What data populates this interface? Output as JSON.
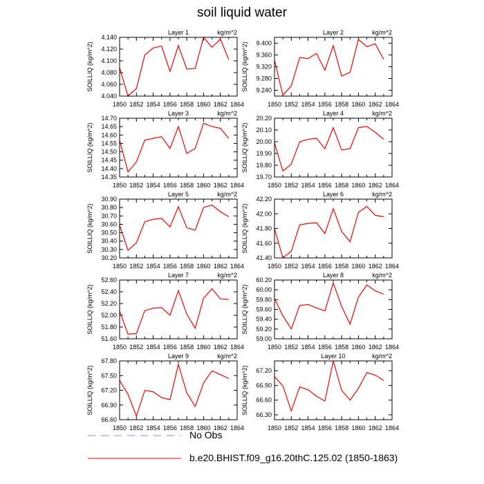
{
  "title": "soil liquid water",
  "legend": {
    "entries": [
      {
        "label": "No Obs",
        "color": "#8080ff",
        "style": "dashed"
      },
      {
        "label": "b.e20.BHIST.f09_g16.20thC.125.02 (1850-1863)",
        "color": "#ff0000",
        "style": "solid"
      }
    ]
  },
  "chart_data": [
    {
      "type": "line",
      "title": "Layer 1",
      "units": "kg/m^2",
      "ylabel": "SOILLIQ  (kg/m^2)",
      "xlim": [
        1850,
        1864
      ],
      "xticks": [
        "1850",
        "1852",
        "1854",
        "1856",
        "1858",
        "1860",
        "1862",
        "1864"
      ],
      "ylim": [
        4.04,
        4.14
      ],
      "yticks": [
        "4.040",
        "4.060",
        "4.080",
        "4.100",
        "4.120",
        "4.140"
      ],
      "x": [
        1850,
        1851,
        1852,
        1853,
        1854,
        1855,
        1856,
        1857,
        1858,
        1859,
        1860,
        1861,
        1862,
        1863
      ],
      "series": [
        {
          "name": "b.e20.BHIST.f09_g16.20thC.125.02 (1850-1863)",
          "values": [
            4.088,
            4.04,
            4.053,
            4.11,
            4.122,
            4.125,
            4.082,
            4.126,
            4.086,
            4.087,
            4.14,
            4.123,
            4.137,
            4.102
          ]
        }
      ]
    },
    {
      "type": "line",
      "title": "Layer 2",
      "units": "kg/m^2",
      "ylabel": "SOILLIQ  (kg/m^2)",
      "xlim": [
        1850,
        1864
      ],
      "xticks": [
        "1850",
        "1852",
        "1854",
        "1856",
        "1858",
        "1860",
        "1862",
        "1864"
      ],
      "ylim": [
        9.22,
        9.42
      ],
      "yticks": [
        "9.240",
        "9.280",
        "9.320",
        "9.360",
        "9.400"
      ],
      "x": [
        1850,
        1851,
        1852,
        1853,
        1854,
        1855,
        1856,
        1857,
        1858,
        1859,
        1860,
        1861,
        1862,
        1863
      ],
      "series": [
        {
          "name": "b.e20.BHIST.f09_g16.20thC.125.02 (1850-1863)",
          "values": [
            9.342,
            9.223,
            9.255,
            9.351,
            9.348,
            9.365,
            9.308,
            9.392,
            9.288,
            9.301,
            9.413,
            9.388,
            9.398,
            9.345
          ]
        }
      ]
    },
    {
      "type": "line",
      "title": "Layer 3",
      "units": "kg/m^2",
      "ylabel": "SOILLIQ  (kg/m^2)",
      "xlim": [
        1850,
        1864
      ],
      "xticks": [
        "1850",
        "1852",
        "1854",
        "1856",
        "1858",
        "1860",
        "1862",
        "1864"
      ],
      "ylim": [
        14.35,
        14.7
      ],
      "yticks": [
        "14.35",
        "14.40",
        "14.45",
        "14.50",
        "14.55",
        "14.60",
        "14.65",
        "14.70"
      ],
      "x": [
        1850,
        1851,
        1852,
        1853,
        1854,
        1855,
        1856,
        1857,
        1858,
        1859,
        1860,
        1861,
        1862,
        1863
      ],
      "series": [
        {
          "name": "b.e20.BHIST.f09_g16.20thC.125.02 (1850-1863)",
          "values": [
            14.57,
            14.38,
            14.44,
            14.57,
            14.58,
            14.59,
            14.52,
            14.65,
            14.49,
            14.52,
            14.67,
            14.65,
            14.64,
            14.58
          ]
        }
      ]
    },
    {
      "type": "line",
      "title": "Layer 4",
      "units": "kg/m^2",
      "ylabel": "SOILLIQ  (kg/m^2)",
      "xlim": [
        1850,
        1864
      ],
      "xticks": [
        "1850",
        "1852",
        "1854",
        "1856",
        "1858",
        "1860",
        "1862",
        "1864"
      ],
      "ylim": [
        19.7,
        20.2
      ],
      "yticks": [
        "19.70",
        "19.80",
        "19.90",
        "20.00",
        "20.10",
        "20.20"
      ],
      "x": [
        1850,
        1851,
        1852,
        1853,
        1854,
        1855,
        1856,
        1857,
        1858,
        1859,
        1860,
        1861,
        1862,
        1863
      ],
      "series": [
        {
          "name": "b.e20.BHIST.f09_g16.20thC.125.02 (1850-1863)",
          "values": [
            19.99,
            19.75,
            19.81,
            20.0,
            20.02,
            20.03,
            19.94,
            20.12,
            19.93,
            19.94,
            20.12,
            20.13,
            20.08,
            20.02
          ]
        }
      ]
    },
    {
      "type": "line",
      "title": "Layer 5",
      "units": "kg/m^2",
      "ylabel": "SOILLIQ  (kg/m^2)",
      "xlim": [
        1850,
        1864
      ],
      "xticks": [
        "1850",
        "1852",
        "1854",
        "1856",
        "1858",
        "1860",
        "1862",
        "1864"
      ],
      "ylim": [
        30.2,
        30.9
      ],
      "yticks": [
        "30.20",
        "30.30",
        "30.40",
        "30.50",
        "30.60",
        "30.70",
        "30.80",
        "30.90"
      ],
      "x": [
        1850,
        1851,
        1852,
        1853,
        1854,
        1855,
        1856,
        1857,
        1858,
        1859,
        1860,
        1861,
        1862,
        1863
      ],
      "series": [
        {
          "name": "b.e20.BHIST.f09_g16.20thC.125.02 (1850-1863)",
          "values": [
            30.59,
            30.29,
            30.38,
            30.63,
            30.66,
            30.67,
            30.57,
            30.81,
            30.56,
            30.53,
            30.8,
            30.83,
            30.75,
            30.69
          ]
        }
      ]
    },
    {
      "type": "line",
      "title": "Layer 6",
      "units": "kg/m^2",
      "ylabel": "SOILLIQ  (kg/m^2)",
      "xlim": [
        1850,
        1864
      ],
      "xticks": [
        "1850",
        "1852",
        "1854",
        "1856",
        "1858",
        "1860",
        "1862",
        "1864"
      ],
      "ylim": [
        41.4,
        42.2
      ],
      "yticks": [
        "41.40",
        "41.60",
        "41.80",
        "42.00",
        "42.20"
      ],
      "x": [
        1850,
        1851,
        1852,
        1853,
        1854,
        1855,
        1856,
        1857,
        1858,
        1859,
        1860,
        1861,
        1862,
        1863
      ],
      "series": [
        {
          "name": "b.e20.BHIST.f09_g16.20thC.125.02 (1850-1863)",
          "values": [
            41.8,
            41.4,
            41.49,
            41.85,
            41.87,
            41.88,
            41.73,
            42.07,
            41.76,
            41.62,
            42.02,
            42.1,
            41.98,
            41.96
          ]
        }
      ]
    },
    {
      "type": "line",
      "title": "Layer 7",
      "units": "kg/m^2",
      "ylabel": "SOILLIQ  (kg/m^2)",
      "xlim": [
        1850,
        1864
      ],
      "xticks": [
        "1850",
        "1852",
        "1854",
        "1856",
        "1858",
        "1860",
        "1862",
        "1864"
      ],
      "ylim": [
        51.6,
        52.6
      ],
      "yticks": [
        "51.60",
        "51.80",
        "52.00",
        "52.20",
        "52.40",
        "52.60"
      ],
      "x": [
        1850,
        1851,
        1852,
        1853,
        1854,
        1855,
        1856,
        1857,
        1858,
        1859,
        1860,
        1861,
        1862,
        1863
      ],
      "series": [
        {
          "name": "b.e20.BHIST.f09_g16.20thC.125.02 (1850-1863)",
          "values": [
            52.07,
            51.68,
            51.69,
            52.08,
            52.12,
            52.13,
            52.0,
            52.42,
            52.02,
            51.78,
            52.29,
            52.45,
            52.28,
            52.27
          ]
        }
      ]
    },
    {
      "type": "line",
      "title": "Layer 8",
      "units": "kg/m^2",
      "ylabel": "SOILLIQ  (kg/m^2)",
      "xlim": [
        1850,
        1864
      ],
      "xticks": [
        "1850",
        "1852",
        "1854",
        "1856",
        "1858",
        "1860",
        "1862",
        "1864"
      ],
      "ylim": [
        59.0,
        60.2
      ],
      "yticks": [
        "59.00",
        "59.20",
        "59.40",
        "59.60",
        "59.80",
        "60.00",
        "60.20"
      ],
      "x": [
        1850,
        1851,
        1852,
        1853,
        1854,
        1855,
        1856,
        1857,
        1858,
        1859,
        1860,
        1861,
        1862,
        1863
      ],
      "series": [
        {
          "name": "b.e20.BHIST.f09_g16.20thC.125.02 (1850-1863)",
          "values": [
            59.82,
            59.47,
            59.2,
            59.68,
            59.7,
            59.63,
            59.57,
            60.14,
            59.66,
            59.3,
            59.85,
            60.1,
            59.98,
            59.91
          ]
        }
      ]
    },
    {
      "type": "line",
      "title": "Layer 9",
      "units": "kg/m^2",
      "ylabel": "SOILLIQ  (kg/m^2)",
      "xlim": [
        1850,
        1864
      ],
      "xticks": [
        "1850",
        "1852",
        "1854",
        "1856",
        "1858",
        "1860",
        "1862",
        "1864"
      ],
      "ylim": [
        66.6,
        67.8
      ],
      "yticks": [
        "66.60",
        "66.90",
        "67.20",
        "67.50",
        "67.80"
      ],
      "x": [
        1850,
        1851,
        1852,
        1853,
        1854,
        1855,
        1856,
        1857,
        1858,
        1859,
        1860,
        1861,
        1862,
        1863
      ],
      "series": [
        {
          "name": "b.e20.BHIST.f09_g16.20thC.125.02 (1850-1863)",
          "values": [
            67.4,
            67.12,
            66.67,
            67.2,
            67.17,
            67.05,
            67.01,
            67.73,
            67.15,
            66.87,
            67.35,
            67.6,
            67.52,
            67.44
          ]
        }
      ]
    },
    {
      "type": "line",
      "title": "Layer 10",
      "units": "kg/m^2",
      "ylabel": "SOILLIQ  (kg/m^2)",
      "xlim": [
        1850,
        1864
      ],
      "xticks": [
        "1850",
        "1852",
        "1854",
        "1856",
        "1858",
        "1860",
        "1862",
        "1864"
      ],
      "ylim": [
        66.2,
        67.4
      ],
      "yticks": [
        "66.30",
        "66.60",
        "66.90",
        "67.20"
      ],
      "x": [
        1850,
        1851,
        1852,
        1853,
        1854,
        1855,
        1856,
        1857,
        1858,
        1859,
        1860,
        1861,
        1862,
        1863
      ],
      "series": [
        {
          "name": "b.e20.BHIST.f09_g16.20thC.125.02 (1850-1863)",
          "values": [
            67.08,
            66.89,
            66.38,
            66.87,
            66.81,
            66.68,
            66.58,
            67.4,
            66.8,
            66.6,
            66.84,
            67.16,
            67.11,
            67.0
          ]
        }
      ]
    }
  ]
}
